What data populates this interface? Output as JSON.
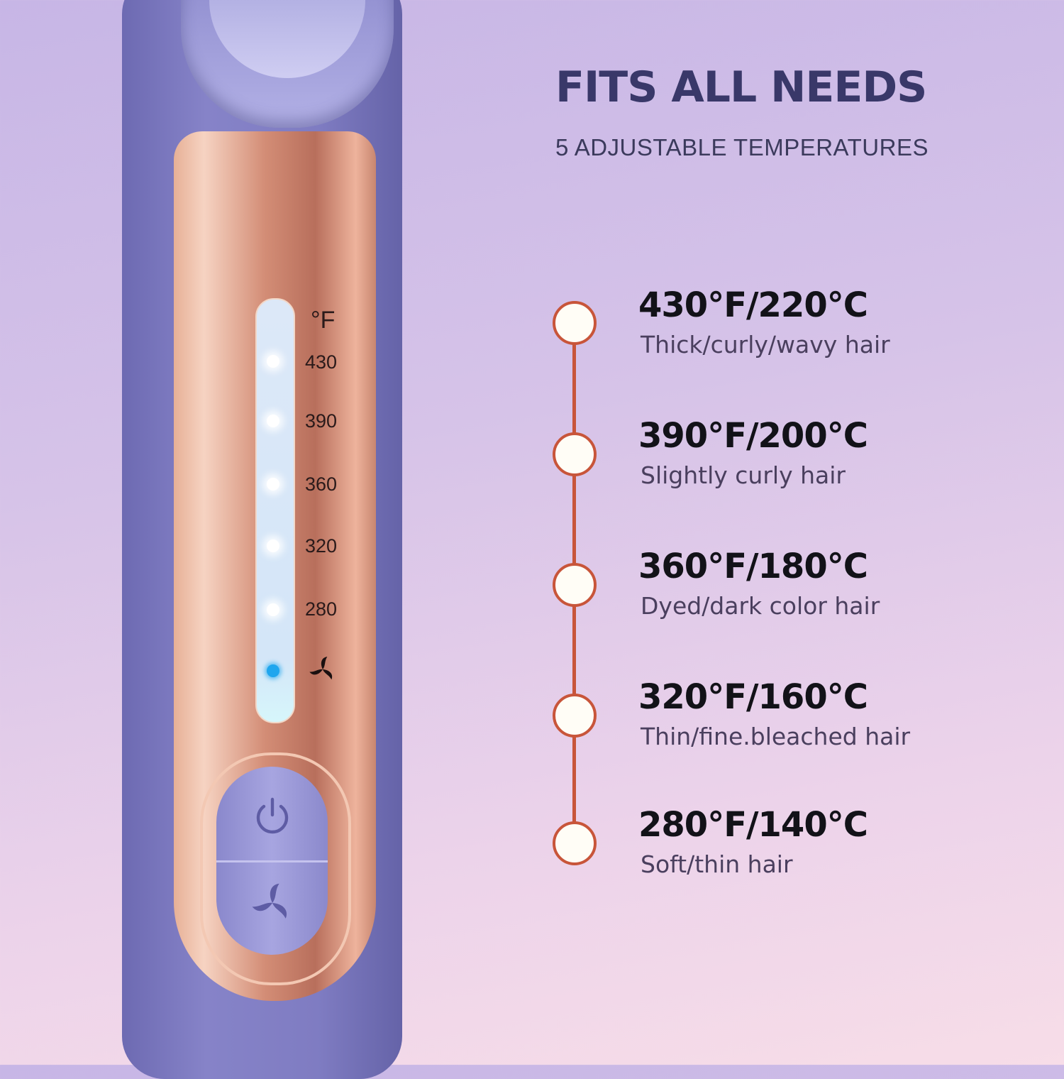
{
  "header": {
    "title": "FITS ALL NEEDS",
    "subtitle": "5 ADJUSTABLE TEMPERATURES"
  },
  "device": {
    "unit": "°F",
    "scale": [
      "430",
      "390",
      "360",
      "320",
      "280"
    ],
    "active_setting": "fan",
    "icons": [
      "fan-icon",
      "power-icon"
    ]
  },
  "settings": [
    {
      "temp": "430°F/220°C",
      "desc": "Thick/curly/wavy hair"
    },
    {
      "temp": "390°F/200°C",
      "desc": "Slightly curly hair"
    },
    {
      "temp": "360°F/180°C",
      "desc": "Dyed/dark color hair"
    },
    {
      "temp": "320°F/160°C",
      "desc": "Thin/fine.bleached hair"
    },
    {
      "temp": "280°F/140°C",
      "desc": "Soft/thin hair"
    }
  ],
  "colors": {
    "accent": "#c8553a",
    "title": "#393869",
    "device": "#7f7cc2",
    "rose_gold": "#d38d76",
    "led_active": "#1fa6ee"
  }
}
